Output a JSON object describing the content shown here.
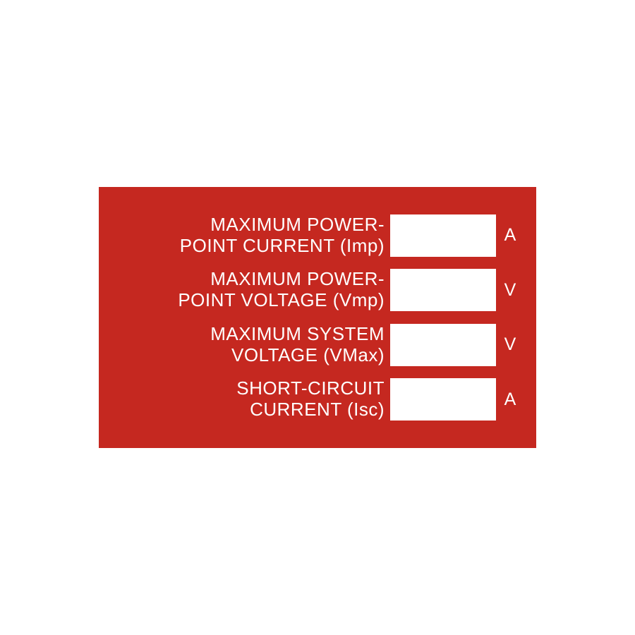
{
  "placard": {
    "background_color": "#c52820",
    "text_color": "#ffffff",
    "box_color": "#ffffff",
    "rows": [
      {
        "label": "MAXIMUM POWER-\nPOINT CURRENT (Imp)",
        "unit": "A"
      },
      {
        "label": "MAXIMUM POWER-\nPOINT VOLTAGE (Vmp)",
        "unit": "V"
      },
      {
        "label": "MAXIMUM SYSTEM\nVOLTAGE (VMax)",
        "unit": "V"
      },
      {
        "label": "SHORT-CIRCUIT\nCURRENT (Isc)",
        "unit": "A"
      }
    ]
  }
}
